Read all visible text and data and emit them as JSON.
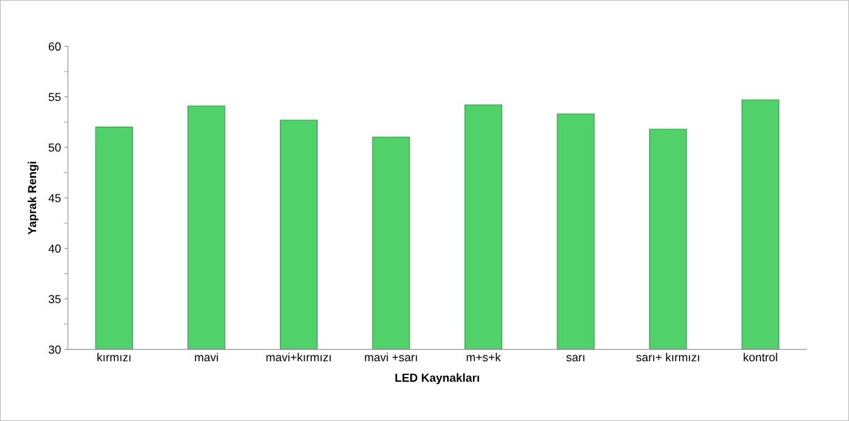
{
  "chart_data": {
    "type": "bar",
    "xlabel": "LED Kaynakları",
    "ylabel": "Yaprak Rengi",
    "categories": [
      "kırmızı",
      "mavi",
      "mavi+kırmızı",
      "mavi +sarı",
      "m+s+k",
      "sarı",
      "sarı+ kırmızı",
      "kontrol"
    ],
    "values": [
      52.0,
      54.1,
      52.7,
      51.0,
      54.2,
      53.3,
      51.8,
      54.7
    ],
    "color": "#50d16a",
    "ylim": [
      30,
      60
    ],
    "yticks": [
      30,
      35,
      40,
      45,
      50,
      55,
      60
    ],
    "grid": false,
    "legend": false
  }
}
